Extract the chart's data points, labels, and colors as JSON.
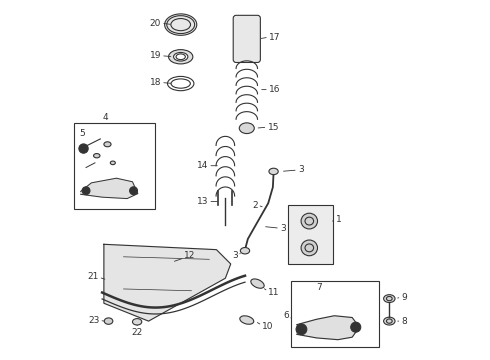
{
  "bg_color": "#ffffff",
  "line_color": "#333333",
  "figsize": [
    4.9,
    3.6
  ],
  "dpi": 100
}
